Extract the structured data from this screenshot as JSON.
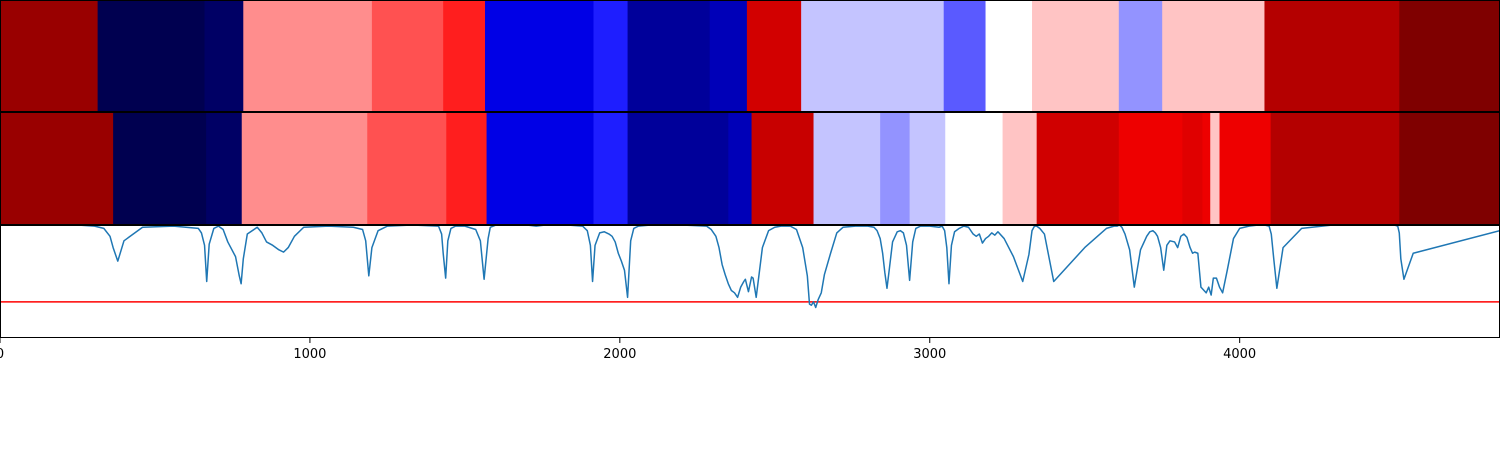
{
  "chart_data": {
    "type": "heatmap",
    "title": "",
    "xlabel": "",
    "ylabel": "",
    "xlim": [
      0,
      4840
    ],
    "xticks": [
      0,
      1000,
      2000,
      3000,
      4000
    ],
    "xtick_labels": [
      "0",
      "1000",
      "2000",
      "3000",
      "4000"
    ],
    "colormap": "seismic",
    "colormap_stops": [
      "#00004c",
      "#0000ff",
      "#ffffff",
      "#ff0000",
      "#7f0000"
    ],
    "strips": [
      {
        "segments": [
          {
            "x0": 0,
            "x1": 315,
            "color": "#990000"
          },
          {
            "x0": 315,
            "x1": 660,
            "color": "#000050"
          },
          {
            "x0": 660,
            "x1": 785,
            "color": "#000065"
          },
          {
            "x0": 785,
            "x1": 1200,
            "color": "#ff8d8d"
          },
          {
            "x0": 1200,
            "x1": 1430,
            "color": "#ff5151"
          },
          {
            "x0": 1430,
            "x1": 1565,
            "color": "#ff1e1e"
          },
          {
            "x0": 1565,
            "x1": 1915,
            "color": "#0000e6"
          },
          {
            "x0": 1915,
            "x1": 2025,
            "color": "#1e1eff"
          },
          {
            "x0": 2025,
            "x1": 2290,
            "color": "#00009a"
          },
          {
            "x0": 2290,
            "x1": 2410,
            "color": "#0000b8"
          },
          {
            "x0": 2410,
            "x1": 2585,
            "color": "#d20000"
          },
          {
            "x0": 2585,
            "x1": 3045,
            "color": "#c4c4ff"
          },
          {
            "x0": 3045,
            "x1": 3180,
            "color": "#5a5aff"
          },
          {
            "x0": 3180,
            "x1": 3330,
            "color": "#ffffff"
          },
          {
            "x0": 3330,
            "x1": 3610,
            "color": "#ffc4c4"
          },
          {
            "x0": 3610,
            "x1": 3750,
            "color": "#9393ff"
          },
          {
            "x0": 3750,
            "x1": 4080,
            "color": "#ffc4c4"
          },
          {
            "x0": 4080,
            "x1": 4515,
            "color": "#b40000"
          },
          {
            "x0": 4515,
            "x1": 4840,
            "color": "#7f0000"
          }
        ]
      },
      {
        "segments": [
          {
            "x0": 0,
            "x1": 365,
            "color": "#990000"
          },
          {
            "x0": 365,
            "x1": 665,
            "color": "#000050"
          },
          {
            "x0": 665,
            "x1": 780,
            "color": "#000065"
          },
          {
            "x0": 780,
            "x1": 1185,
            "color": "#ff8d8d"
          },
          {
            "x0": 1185,
            "x1": 1440,
            "color": "#ff5151"
          },
          {
            "x0": 1440,
            "x1": 1570,
            "color": "#ff1e1e"
          },
          {
            "x0": 1570,
            "x1": 1915,
            "color": "#0000e6"
          },
          {
            "x0": 1915,
            "x1": 2025,
            "color": "#1e1eff"
          },
          {
            "x0": 2025,
            "x1": 2350,
            "color": "#00009a"
          },
          {
            "x0": 2350,
            "x1": 2425,
            "color": "#0000b8"
          },
          {
            "x0": 2425,
            "x1": 2625,
            "color": "#c80000"
          },
          {
            "x0": 2625,
            "x1": 2840,
            "color": "#c4c4ff"
          },
          {
            "x0": 2840,
            "x1": 2935,
            "color": "#9393ff"
          },
          {
            "x0": 2935,
            "x1": 3050,
            "color": "#c4c4ff"
          },
          {
            "x0": 3050,
            "x1": 3235,
            "color": "#ffffff"
          },
          {
            "x0": 3235,
            "x1": 3345,
            "color": "#ffc4c4"
          },
          {
            "x0": 3345,
            "x1": 3610,
            "color": "#d00000"
          },
          {
            "x0": 3610,
            "x1": 3815,
            "color": "#ee0000"
          },
          {
            "x0": 3815,
            "x1": 3880,
            "color": "#e00000"
          },
          {
            "x0": 3880,
            "x1": 3905,
            "color": "#ee0000"
          },
          {
            "x0": 3905,
            "x1": 3935,
            "color": "#ffc4c4"
          },
          {
            "x0": 3935,
            "x1": 4100,
            "color": "#ee0000"
          },
          {
            "x0": 4100,
            "x1": 4515,
            "color": "#b40000"
          },
          {
            "x0": 4515,
            "x1": 4840,
            "color": "#7f0000"
          }
        ]
      }
    ],
    "line_panel": {
      "ylim": [
        0,
        1
      ],
      "threshold": 0.32,
      "line_color": "#1f77b4",
      "threshold_color": "#ff0000",
      "x": [
        0,
        250,
        305,
        335,
        355,
        365,
        380,
        400,
        460,
        560,
        640,
        650,
        660,
        667,
        675,
        690,
        705,
        720,
        735,
        760,
        772,
        778,
        785,
        798,
        830,
        845,
        860,
        880,
        890,
        900,
        915,
        930,
        950,
        980,
        1060,
        1140,
        1170,
        1180,
        1190,
        1200,
        1220,
        1250,
        1330,
        1415,
        1425,
        1430,
        1438,
        1445,
        1455,
        1470,
        1500,
        1535,
        1550,
        1562,
        1575,
        1582,
        1600,
        1700,
        1730,
        1760,
        1830,
        1880,
        1895,
        1905,
        1912,
        1920,
        1935,
        1950,
        1965,
        1975,
        1985,
        1995,
        2005,
        2015,
        2025,
        2035,
        2045,
        2060,
        2100,
        2200,
        2280,
        2295,
        2310,
        2320,
        2330,
        2340,
        2350,
        2360,
        2370,
        2380,
        2390,
        2400,
        2405,
        2415,
        2425,
        2430,
        2440,
        2460,
        2480,
        2500,
        2520,
        2550,
        2570,
        2590,
        2605,
        2612,
        2618,
        2625,
        2632,
        2640,
        2650,
        2660,
        2680,
        2700,
        2720,
        2760,
        2800,
        2820,
        2830,
        2840,
        2848,
        2855,
        2862,
        2870,
        2880,
        2895,
        2905,
        2915,
        2925,
        2935,
        2945,
        2955,
        2970,
        3000,
        3030,
        3040,
        3048,
        3055,
        3062,
        3070,
        3080,
        3095,
        3110,
        3125,
        3140,
        3150,
        3160,
        3170,
        3180,
        3190,
        3200,
        3210,
        3220,
        3240,
        3270,
        3300,
        3320,
        3330,
        3338,
        3345,
        3355,
        3370,
        3400,
        3500,
        3570,
        3595,
        3605,
        3612,
        3620,
        3630,
        3645,
        3660,
        3680,
        3700,
        3710,
        3720,
        3728,
        3735,
        3745,
        3755,
        3765,
        3775,
        3790,
        3800,
        3810,
        3820,
        3830,
        3840,
        3848,
        3855,
        3865,
        3875,
        3885,
        3892,
        3900,
        3908,
        3915,
        3925,
        3935,
        3945,
        3960,
        3980,
        4000,
        4030,
        4060,
        4080,
        4095,
        4102,
        4110,
        4120,
        4140,
        4200,
        4300,
        4400,
        4480,
        4500,
        4510,
        4515,
        4520,
        4530,
        4560,
        4840
      ],
      "y": [
        1.0,
        1.0,
        0.99,
        0.97,
        0.9,
        0.8,
        0.68,
        0.86,
        0.98,
        0.99,
        0.97,
        0.93,
        0.82,
        0.5,
        0.83,
        0.97,
        0.99,
        0.96,
        0.85,
        0.72,
        0.55,
        0.48,
        0.7,
        0.92,
        0.98,
        0.93,
        0.85,
        0.82,
        0.8,
        0.78,
        0.76,
        0.8,
        0.9,
        0.98,
        0.99,
        0.98,
        0.96,
        0.86,
        0.55,
        0.8,
        0.95,
        0.99,
        1.0,
        0.99,
        0.92,
        0.75,
        0.53,
        0.86,
        0.97,
        0.99,
        0.99,
        0.96,
        0.86,
        0.52,
        0.88,
        0.98,
        1.0,
        1.0,
        0.99,
        1.0,
        1.0,
        0.99,
        0.95,
        0.82,
        0.5,
        0.82,
        0.93,
        0.94,
        0.92,
        0.9,
        0.85,
        0.75,
        0.68,
        0.6,
        0.36,
        0.86,
        0.97,
        0.99,
        1.0,
        1.0,
        0.99,
        0.96,
        0.9,
        0.8,
        0.65,
        0.56,
        0.48,
        0.42,
        0.4,
        0.36,
        0.45,
        0.5,
        0.52,
        0.41,
        0.54,
        0.53,
        0.36,
        0.8,
        0.95,
        0.98,
        0.99,
        0.99,
        0.96,
        0.8,
        0.55,
        0.3,
        0.29,
        0.32,
        0.27,
        0.34,
        0.4,
        0.56,
        0.75,
        0.93,
        0.98,
        0.99,
        0.99,
        0.98,
        0.95,
        0.88,
        0.75,
        0.58,
        0.44,
        0.62,
        0.85,
        0.94,
        0.95,
        0.93,
        0.82,
        0.51,
        0.85,
        0.97,
        0.99,
        0.99,
        0.98,
        0.99,
        0.95,
        0.8,
        0.48,
        0.82,
        0.94,
        0.97,
        0.99,
        0.98,
        0.92,
        0.9,
        0.92,
        0.84,
        0.88,
        0.9,
        0.93,
        0.91,
        0.94,
        0.88,
        0.72,
        0.5,
        0.74,
        0.95,
        0.99,
        0.99,
        0.97,
        0.92,
        0.5,
        0.8,
        0.97,
        0.99,
        0.99,
        1.0,
        0.98,
        0.92,
        0.78,
        0.45,
        0.78,
        0.9,
        0.94,
        0.95,
        0.93,
        0.9,
        0.8,
        0.6,
        0.82,
        0.86,
        0.85,
        0.8,
        0.9,
        0.92,
        0.89,
        0.8,
        0.75,
        0.76,
        0.75,
        0.45,
        0.42,
        0.4,
        0.45,
        0.38,
        0.53,
        0.53,
        0.45,
        0.4,
        0.6,
        0.88,
        0.97,
        0.99,
        1.0,
        1.0,
        0.99,
        0.92,
        0.7,
        0.44,
        0.8,
        0.97,
        1.0,
        1.0,
        1.0,
        1.0,
        0.99,
        0.93,
        0.7,
        0.52,
        0.75,
        0.95,
        0.98,
        1.0,
        1.0
      ]
    }
  }
}
